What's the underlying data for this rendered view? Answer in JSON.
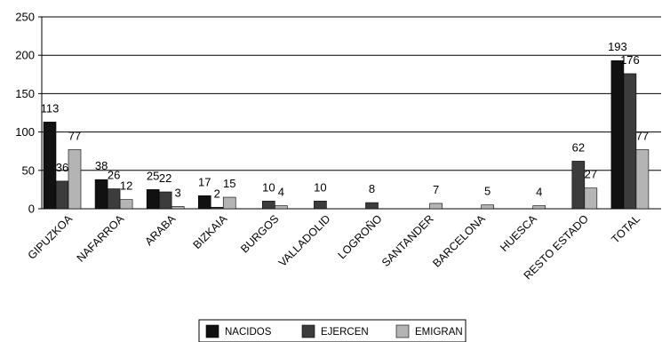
{
  "chart_data": {
    "type": "bar",
    "categories": [
      "GIPUZKOA",
      "NAFARROA",
      "ARABA",
      "BIZKAIA",
      "BURGOS",
      "VALLADOLID",
      "LOGROÑO",
      "SANTANDER",
      "BARCELONA",
      "HUESCA",
      "RESTO ESTADO",
      "TOTAL"
    ],
    "series": [
      {
        "name": "NACIDOS",
        "color": "#111111",
        "values": [
          113,
          38,
          25,
          17,
          0,
          0,
          0,
          0,
          0,
          0,
          0,
          193
        ],
        "labels": [
          "113",
          "38",
          "25",
          "17",
          "",
          "",
          "",
          "",
          "",
          "",
          "",
          "193"
        ]
      },
      {
        "name": "EJERCEN",
        "color": "#3c3c3c",
        "values": [
          36,
          26,
          22,
          2,
          10,
          10,
          8,
          0,
          0,
          0,
          62,
          176
        ],
        "labels": [
          "36",
          "26",
          "22",
          "2",
          "10",
          "10",
          "8",
          "",
          "",
          "",
          "62",
          "176"
        ]
      },
      {
        "name": "EMIGRAN",
        "color": "#b4b4b4",
        "values": [
          77,
          12,
          3,
          15,
          4,
          0,
          0,
          7,
          5,
          4,
          27,
          77
        ],
        "labels": [
          "77",
          "12",
          "3",
          "15",
          "4",
          "",
          "",
          "7",
          "5",
          "4",
          "27",
          "77"
        ]
      }
    ],
    "ylim": [
      0,
      250
    ],
    "yticks": [
      "0",
      "50",
      "100",
      "150",
      "200",
      "250"
    ],
    "grid": true,
    "legend_position": "bottom"
  }
}
